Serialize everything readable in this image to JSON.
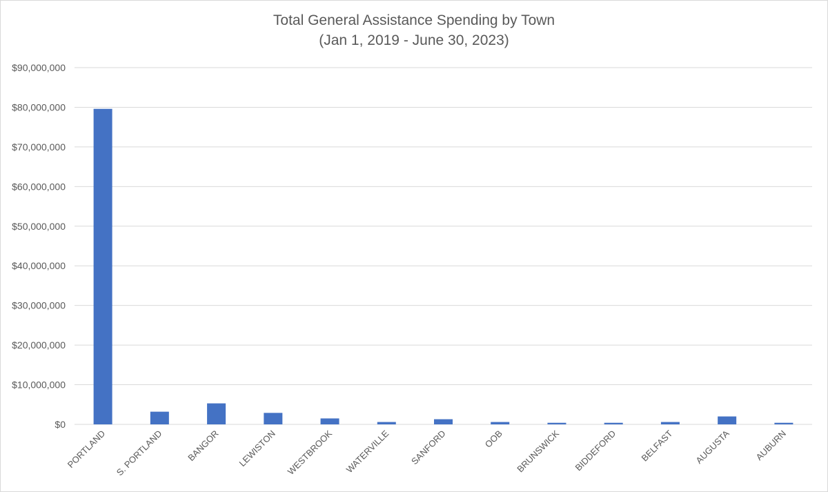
{
  "chart_data": {
    "type": "bar",
    "title": "Total General Assistance Spending by Town",
    "subtitle": "(Jan 1, 2019 - June 30, 2023)",
    "xlabel": "",
    "ylabel": "",
    "categories": [
      "PORTLAND",
      "S. PORTLAND",
      "BANGOR",
      "LEWISTON",
      "WESTBROOK",
      "WATERVILLE",
      "SANFORD",
      "OOB",
      "BRUNSWICK",
      "BIDDEFORD",
      "BELFAST",
      "AUGUSTA",
      "AUBURN"
    ],
    "values": [
      79600000,
      3200000,
      5300000,
      2900000,
      1500000,
      600000,
      1300000,
      600000,
      400000,
      400000,
      600000,
      2000000,
      400000
    ],
    "ylim": [
      0,
      90000000
    ],
    "yticks": [
      0,
      10000000,
      20000000,
      30000000,
      40000000,
      50000000,
      60000000,
      70000000,
      80000000,
      90000000
    ],
    "ytick_labels": [
      "$0",
      "$10,000,000",
      "$20,000,000",
      "$30,000,000",
      "$40,000,000",
      "$50,000,000",
      "$60,000,000",
      "$70,000,000",
      "$80,000,000",
      "$90,000,000"
    ],
    "grid": true,
    "legend": "none",
    "colors": {
      "bar": "#4472C4",
      "grid": "#d9d9d9",
      "text": "#595959"
    }
  }
}
